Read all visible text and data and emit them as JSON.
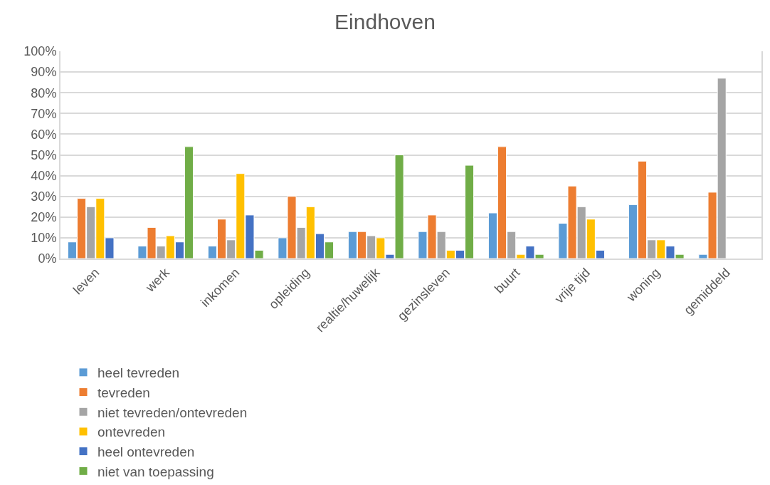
{
  "chart_data": {
    "type": "bar",
    "title": "Eindhoven",
    "categories": [
      "leven",
      "werk",
      "inkomen",
      "opleiding",
      "realtie/huwelijk",
      "gezinsleven",
      "buurt",
      "vrije tijd",
      "woning",
      "gemiddeld"
    ],
    "series": [
      {
        "name": "heel tevreden",
        "color": "#5b9bd5",
        "values": [
          8,
          6,
          6,
          10,
          13,
          13,
          22,
          17,
          26,
          2
        ]
      },
      {
        "name": "tevreden",
        "color": "#ed7d31",
        "values": [
          29,
          15,
          19,
          30,
          13,
          21,
          54,
          35,
          47,
          32
        ]
      },
      {
        "name": "niet tevreden/ontevreden",
        "color": "#a5a5a5",
        "values": [
          25,
          6,
          9,
          15,
          11,
          13,
          13,
          25,
          9,
          87
        ]
      },
      {
        "name": "ontevreden",
        "color": "#ffc000",
        "values": [
          29,
          11,
          41,
          25,
          10,
          4,
          2,
          19,
          9,
          null
        ]
      },
      {
        "name": "heel ontevreden",
        "color": "#4472c4",
        "values": [
          10,
          8,
          21,
          12,
          2,
          4,
          6,
          4,
          6,
          null
        ]
      },
      {
        "name": "niet van toepassing",
        "color": "#70ad47",
        "values": [
          null,
          54,
          4,
          8,
          50,
          45,
          2,
          null,
          2,
          null
        ]
      }
    ],
    "ylim": [
      0,
      100
    ],
    "yticks": [
      {
        "value": 0,
        "label": "0%"
      },
      {
        "value": 10,
        "label": "10%"
      },
      {
        "value": 20,
        "label": "20%"
      },
      {
        "value": 30,
        "label": "30%"
      },
      {
        "value": 40,
        "label": "40%"
      },
      {
        "value": 50,
        "label": "50%"
      },
      {
        "value": 60,
        "label": "60%"
      },
      {
        "value": 70,
        "label": "70%"
      },
      {
        "value": 80,
        "label": "80%"
      },
      {
        "value": 90,
        "label": "90%"
      },
      {
        "value": 100,
        "label": "100%"
      }
    ],
    "grid": "y",
    "legend": "bottom"
  }
}
